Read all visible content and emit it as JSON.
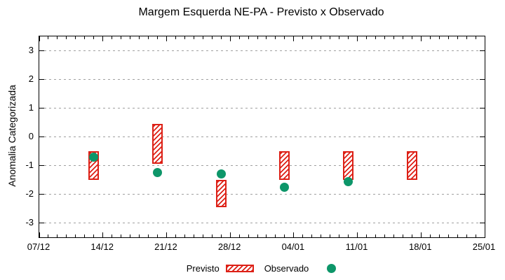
{
  "title": "Margem Esquerda NE-PA - Previsto x Observado",
  "y_axis": {
    "label": "Anomalia Categorizada",
    "ticks": [
      3,
      2,
      1,
      0,
      -1,
      -2,
      -3
    ],
    "min": -3.5,
    "max": 3.5
  },
  "x_axis": {
    "major_ticks": [
      "07/12",
      "14/12",
      "21/12",
      "28/12",
      "04/01",
      "11/01",
      "18/01",
      "25/01"
    ],
    "major_tick_every_days": 7,
    "minor_tick_every_days": 1,
    "span_days": 49
  },
  "legend": {
    "previsto_label": "Previsto",
    "observado_label": "Observado"
  },
  "colors": {
    "previsto_red": "#dd2016",
    "observado_green": "#0d9669",
    "grid_gray": "#a0a0a0",
    "axis_black": "#000000",
    "background": "#ffffff"
  },
  "chart_data": {
    "type": "bar",
    "subtype": "range-boxes-with-scatter",
    "title": "Margem Esquerda NE-PA - Previsto x Observado",
    "xlabel": "",
    "ylabel": "Anomalia Categorizada",
    "ylim": [
      -3.5,
      3.5
    ],
    "x_range": [
      "07/12",
      "25/01"
    ],
    "grid": "horizontal dotted gray at integer y values",
    "legend_position": "bottom center",
    "series": [
      {
        "name": "Previsto",
        "style": "red hatched vertical range box",
        "points": [
          {
            "date": "13/12",
            "day": 6,
            "top": -0.5,
            "bottom": -1.5
          },
          {
            "date": "20/12",
            "day": 13,
            "top": 0.45,
            "bottom": -0.95
          },
          {
            "date": "27/12",
            "day": 20,
            "top": -1.5,
            "bottom": -2.45
          },
          {
            "date": "03/01",
            "day": 27,
            "top": -0.5,
            "bottom": -1.5
          },
          {
            "date": "10/01",
            "day": 34,
            "top": -0.5,
            "bottom": -1.5
          },
          {
            "date": "17/01",
            "day": 41,
            "top": -0.5,
            "bottom": -1.5
          }
        ]
      },
      {
        "name": "Observado",
        "style": "green filled circle",
        "points": [
          {
            "date": "13/12",
            "day": 6,
            "value": -0.7
          },
          {
            "date": "20/12",
            "day": 13,
            "value": -1.25
          },
          {
            "date": "27/12",
            "day": 20,
            "value": -1.3
          },
          {
            "date": "03/01",
            "day": 27,
            "value": -1.75
          },
          {
            "date": "10/01",
            "day": 34,
            "value": -1.55
          }
        ]
      }
    ]
  }
}
